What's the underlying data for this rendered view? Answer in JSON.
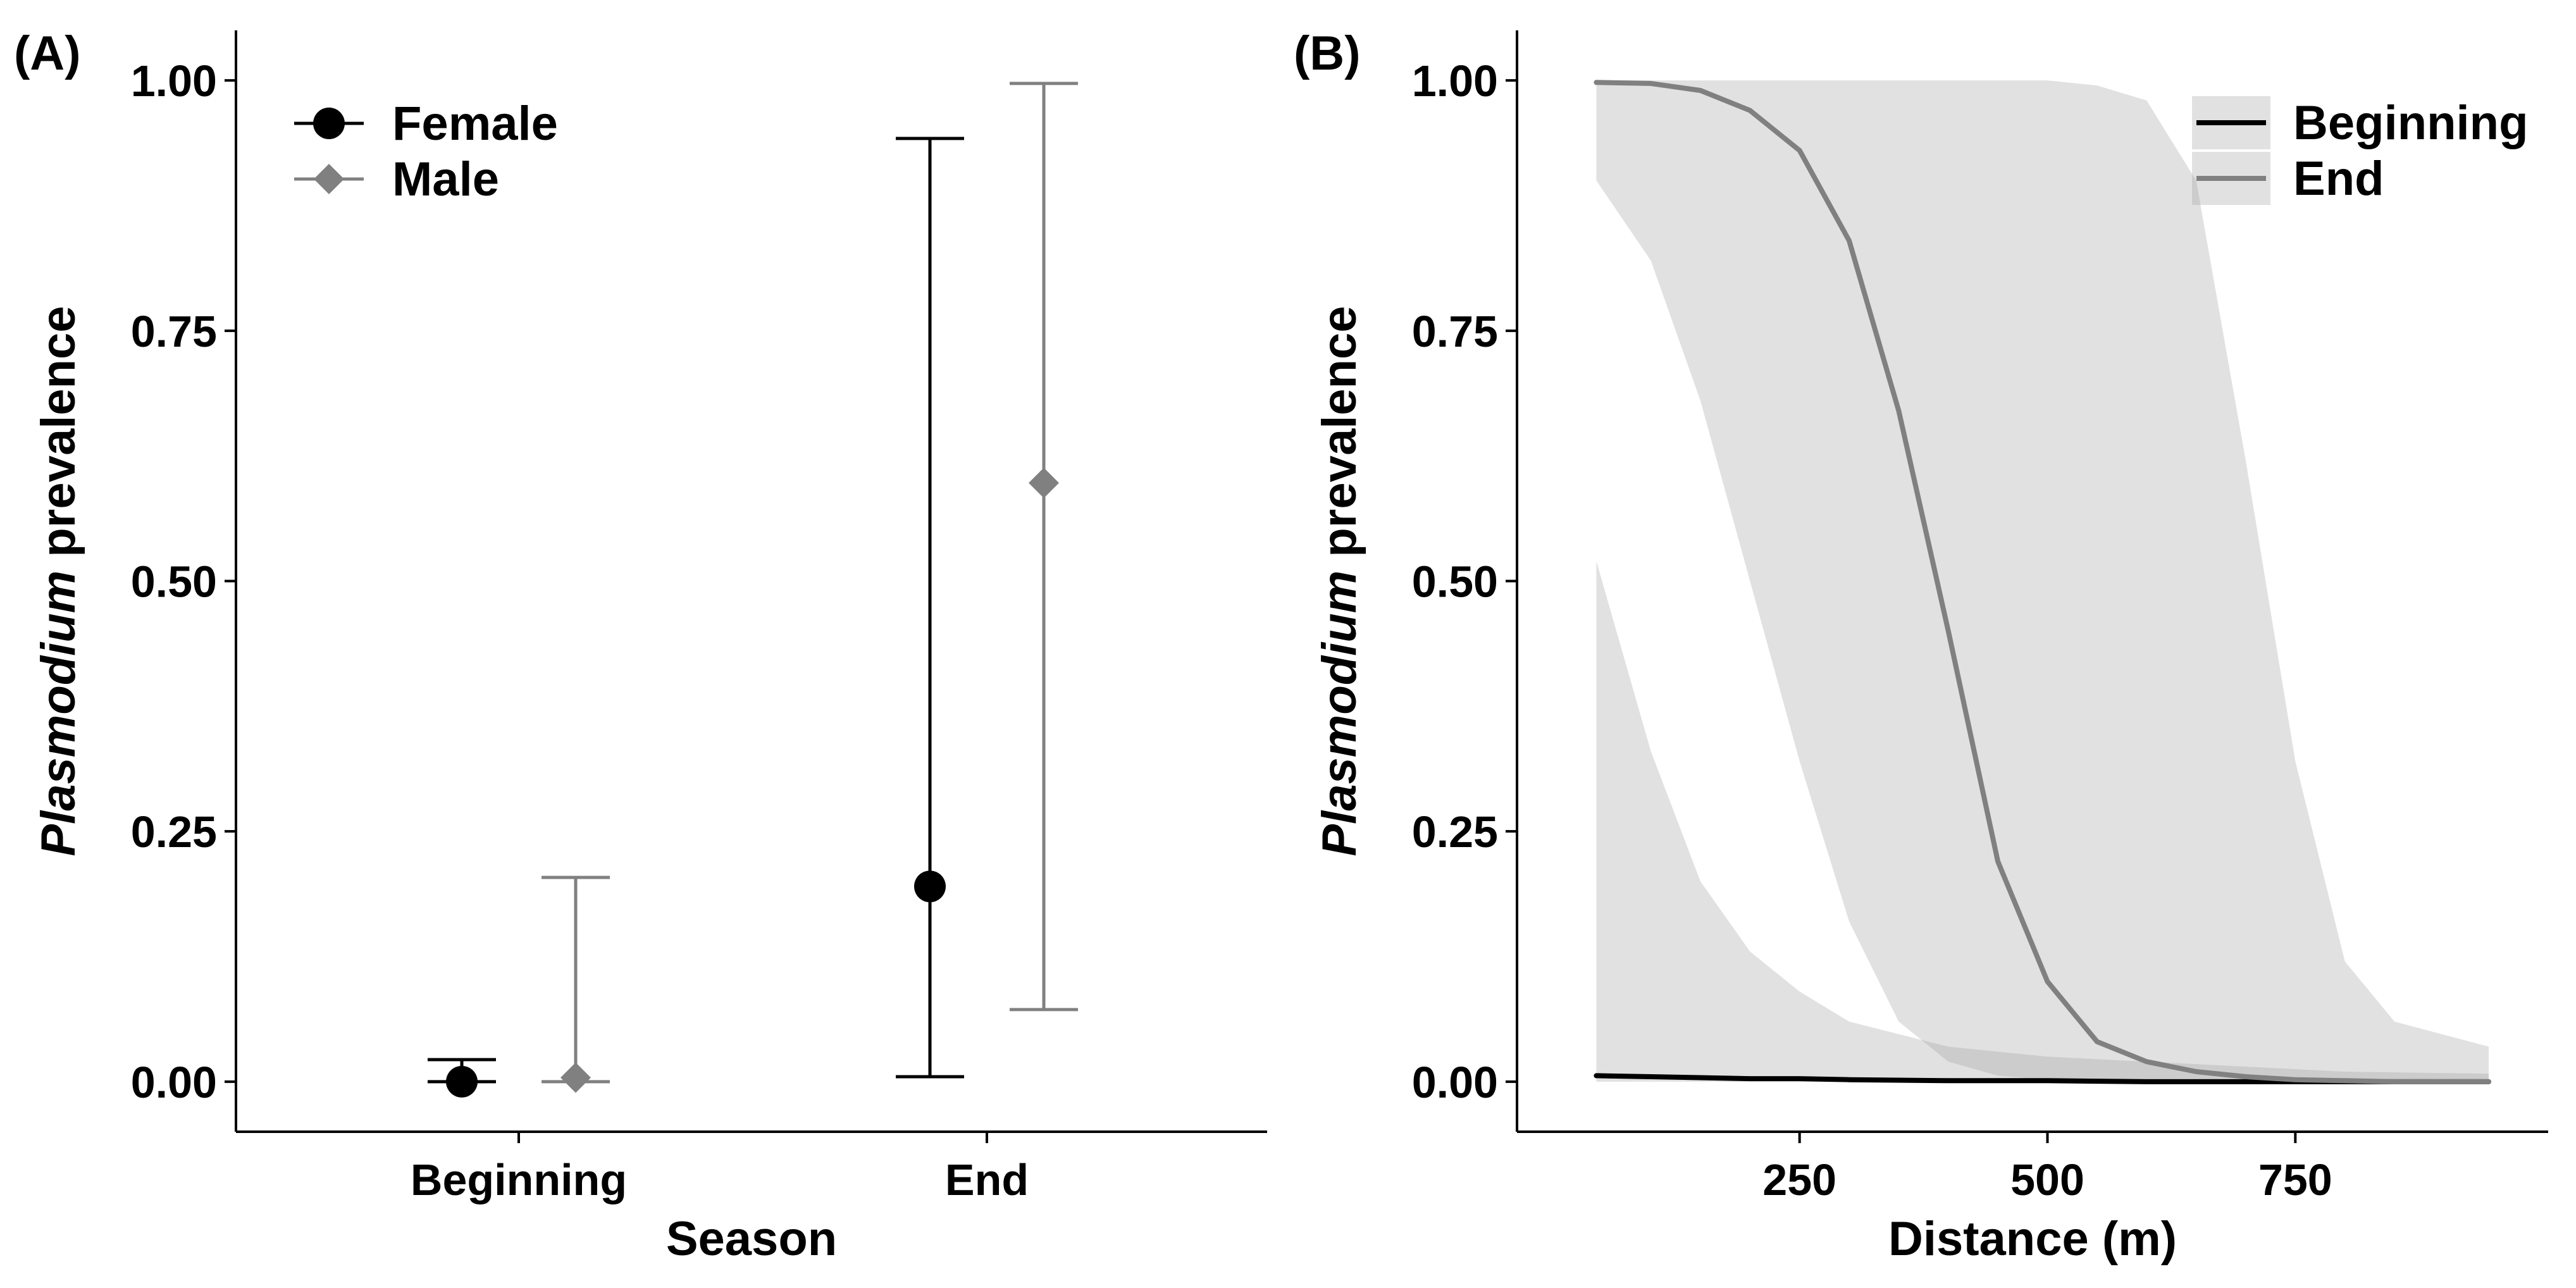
{
  "chart_data": [
    {
      "type": "scatter",
      "panel_label": "(A)",
      "title": "",
      "xlabel": "Season",
      "ylabel_italic": "Plasmodium",
      "ylabel_rest": " prevalence",
      "categories": [
        "Beginning",
        "End"
      ],
      "ylim": [
        -0.05,
        1.05
      ],
      "y_ticks": [
        0.0,
        0.25,
        0.5,
        0.75,
        1.0
      ],
      "y_tick_labels": [
        "0.00",
        "0.25",
        "0.50",
        "0.75",
        "1.00"
      ],
      "series": [
        {
          "name": "Female",
          "marker": "circle",
          "color": "#000000",
          "values": [
            0.0,
            0.195
          ],
          "lower": [
            0.0,
            0.005
          ],
          "upper": [
            0.022,
            0.942
          ]
        },
        {
          "name": "Male",
          "marker": "diamond",
          "color": "#808080",
          "values": [
            0.004,
            0.598
          ],
          "lower": [
            0.0,
            0.072
          ],
          "upper": [
            0.204,
            0.997
          ]
        }
      ],
      "legend": {
        "position": "top-left",
        "entries": [
          "Female",
          "Male"
        ]
      }
    },
    {
      "type": "line",
      "panel_label": "(B)",
      "title": "",
      "xlabel": "Distance (m)",
      "ylabel_italic": "Plasmodium",
      "ylabel_rest": " prevalence",
      "xlim": [
        -35,
        1005
      ],
      "ylim": [
        -0.05,
        1.05
      ],
      "x_ticks": [
        250,
        500,
        750
      ],
      "x_tick_labels": [
        "250",
        "500",
        "750"
      ],
      "y_ticks": [
        0.0,
        0.25,
        0.5,
        0.75,
        1.0
      ],
      "y_tick_labels": [
        "0.00",
        "0.25",
        "0.50",
        "0.75",
        "1.00"
      ],
      "series": [
        {
          "name": "Beginning",
          "color": "#000000",
          "x": [
            45,
            100,
            150,
            200,
            250,
            300,
            400,
            500,
            600,
            700,
            800,
            945
          ],
          "y": [
            0.006,
            0.005,
            0.004,
            0.003,
            0.003,
            0.002,
            0.001,
            0.001,
            0.0,
            0.0,
            0.0,
            0.0
          ],
          "lower": [
            0.0,
            0.0,
            0.0,
            0.0,
            0.0,
            0.0,
            0.0,
            0.0,
            0.0,
            0.0,
            0.0,
            0.0
          ],
          "upper": [
            0.52,
            0.33,
            0.2,
            0.13,
            0.09,
            0.06,
            0.035,
            0.025,
            0.02,
            0.015,
            0.01,
            0.008
          ]
        },
        {
          "name": "End",
          "color": "#808080",
          "x": [
            45,
            100,
            150,
            200,
            250,
            300,
            350,
            400,
            450,
            500,
            550,
            600,
            650,
            700,
            750,
            800,
            850,
            945
          ],
          "y": [
            0.998,
            0.997,
            0.99,
            0.97,
            0.93,
            0.84,
            0.67,
            0.45,
            0.22,
            0.1,
            0.04,
            0.02,
            0.01,
            0.005,
            0.002,
            0.001,
            0.0,
            0.0
          ],
          "lower": [
            0.9,
            0.82,
            0.68,
            0.5,
            0.32,
            0.16,
            0.06,
            0.02,
            0.006,
            0.002,
            0.0,
            0.0,
            0.0,
            0.0,
            0.0,
            0.0,
            0.0,
            0.0
          ],
          "upper": [
            1.0,
            1.0,
            1.0,
            1.0,
            1.0,
            1.0,
            1.0,
            1.0,
            1.0,
            1.0,
            0.995,
            0.98,
            0.9,
            0.62,
            0.32,
            0.12,
            0.06,
            0.035
          ]
        }
      ],
      "legend": {
        "position": "top-right",
        "entries": [
          "Beginning",
          "End"
        ]
      }
    }
  ]
}
